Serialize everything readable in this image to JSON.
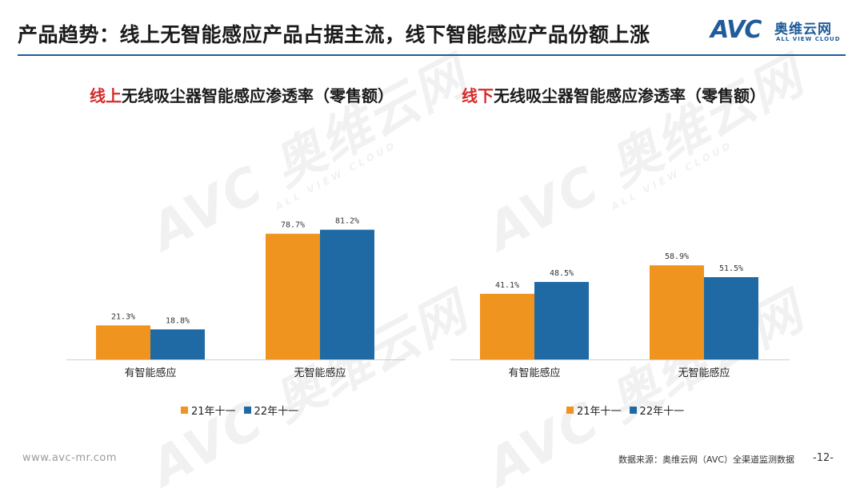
{
  "header": {
    "title": "产品趋势：线上无智能感应产品占据主流，线下智能感应产品份额上涨"
  },
  "logo": {
    "mark": "AVC",
    "name_cn": "奥维云网",
    "name_en": "ALL VIEW CLOUD"
  },
  "watermark": {
    "brand": "AVC 奥维云网",
    "tagline": "ALL VIEW CLOUD"
  },
  "colors": {
    "series_21": "#ef941f",
    "series_22": "#1f6aa5",
    "accent_rule": "#1f5c99",
    "title_highlight": "#d62a2a"
  },
  "charts": {
    "online": {
      "title_prefix": "线上",
      "title_rest": "无线吸尘器智能感应渗透率（零售额）"
    },
    "offline": {
      "title_prefix": "线下",
      "title_rest": "无线吸尘器智能感应渗透率（零售额）"
    }
  },
  "chart_data": [
    {
      "type": "bar",
      "title": "线上无线吸尘器智能感应渗透率（零售额）",
      "categories": [
        "有智能感应",
        "无智能感应"
      ],
      "series": [
        {
          "name": "21年十一",
          "values": [
            21.3,
            78.7
          ],
          "labels": [
            "21.3%",
            "78.7%"
          ]
        },
        {
          "name": "22年十一",
          "values": [
            18.8,
            81.2
          ],
          "labels": [
            "18.8%",
            "81.2%"
          ]
        }
      ],
      "grid": false,
      "legend": "bottom"
    },
    {
      "type": "bar",
      "title": "线下无线吸尘器智能感应渗透率（零售额）",
      "categories": [
        "有智能感应",
        "无智能感应"
      ],
      "series": [
        {
          "name": "21年十一",
          "values": [
            41.1,
            58.9
          ],
          "labels": [
            "41.1%",
            "58.9%"
          ]
        },
        {
          "name": "22年十一",
          "values": [
            48.5,
            51.5
          ],
          "labels": [
            "48.5%",
            "51.5%"
          ]
        }
      ],
      "grid": false,
      "legend": "bottom"
    }
  ],
  "footer": {
    "url": "www.avc-mr.com",
    "source": "数据来源：奥维云网（AVC）全渠道监测数据",
    "page": "-12-"
  }
}
